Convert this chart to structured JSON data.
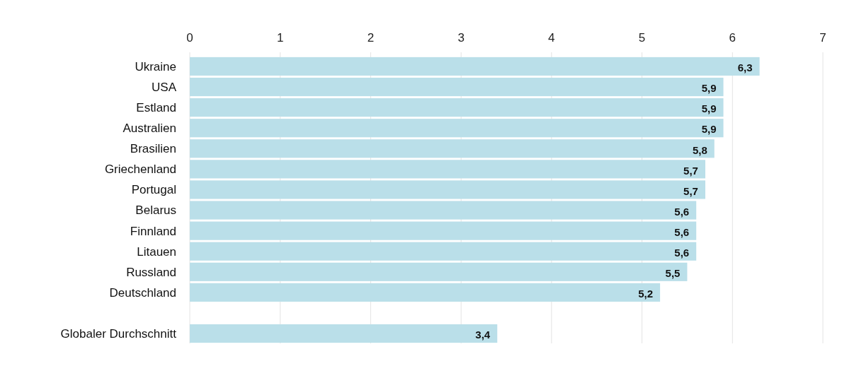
{
  "chart_data": {
    "type": "bar",
    "orientation": "horizontal",
    "categories": [
      "Ukraine",
      "USA",
      "Estland",
      "Australien",
      "Brasilien",
      "Griechenland",
      "Portugal",
      "Belarus",
      "Finnland",
      "Litauen",
      "Russland",
      "Deutschland",
      null,
      "Globaler Durchschnitt"
    ],
    "values": [
      6.3,
      5.9,
      5.9,
      5.9,
      5.8,
      5.7,
      5.7,
      5.6,
      5.6,
      5.6,
      5.5,
      5.2,
      null,
      3.4
    ],
    "value_labels": [
      "6,3",
      "5,9",
      "5,9",
      "5,9",
      "5,8",
      "5,7",
      "5,7",
      "5,6",
      "5,6",
      "5,6",
      "5,5",
      "5,2",
      null,
      "3,4"
    ],
    "color": "#badfe9",
    "xlim": [
      0,
      7
    ],
    "xticks": [
      0,
      1,
      2,
      3,
      4,
      5,
      6,
      7
    ],
    "grid": "x"
  }
}
